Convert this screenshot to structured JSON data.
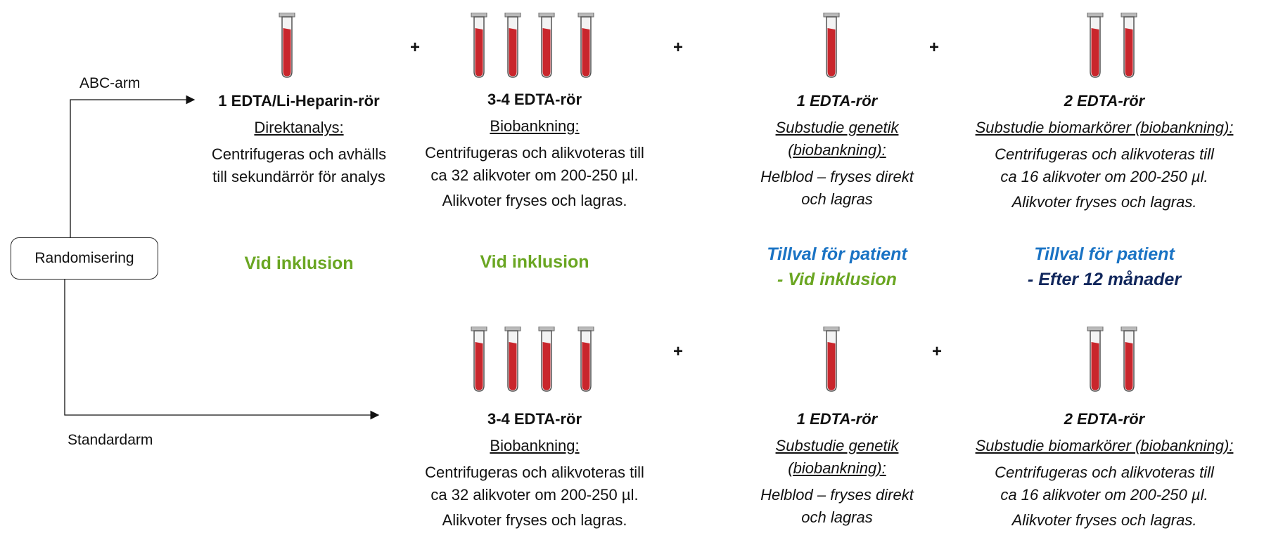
{
  "randomization": {
    "label": "Randomisering"
  },
  "arms": {
    "abc": {
      "label": "ABC-arm"
    },
    "standard": {
      "label": "Standardarm"
    }
  },
  "plus_symbol": "+",
  "colors": {
    "green": "#6aa622",
    "blue": "#1a73c4",
    "navy": "#11275c",
    "blood": "#c9262c"
  },
  "abc_arm": {
    "direct": {
      "tube_count": 1,
      "title": "1 EDTA/Li-Heparin-rör",
      "subtitle": "Direktanalys:",
      "desc": [
        "Centrifugeras och avhälls",
        "till sekundärrör för analys"
      ],
      "status": "Vid inklusion"
    },
    "biobank": {
      "tube_count": 4,
      "title": "3-4 EDTA-rör",
      "subtitle": "Biobankning:",
      "desc": [
        "Centrifugeras och alikvoteras till",
        "ca 32 alikvoter om 200-250 µl."
      ],
      "desc2": "Alikvoter fryses och lagras.",
      "status": "Vid inklusion"
    },
    "genetics": {
      "tube_count": 1,
      "title": "1 EDTA-rör",
      "subtitle": [
        "Substudie genetik",
        "(biobankning):"
      ],
      "desc": [
        "Helblod – fryses direkt",
        "och lagras"
      ],
      "status_line1": "Tillval för patient",
      "status_line2": "- Vid inklusion"
    },
    "biomarkers": {
      "tube_count": 2,
      "title": "2 EDTA-rör",
      "subtitle": "Substudie biomarkörer (biobankning):",
      "desc": [
        "Centrifugeras och alikvoteras till",
        "ca 16 alikvoter om 200-250 µl."
      ],
      "desc2": "Alikvoter fryses och lagras.",
      "status_line1": "Tillval för patient",
      "status_line2": "- Efter 12 månader"
    }
  },
  "standard_arm": {
    "biobank": {
      "tube_count": 4,
      "title": "3-4 EDTA-rör",
      "subtitle": "Biobankning:",
      "desc": [
        "Centrifugeras och alikvoteras till",
        "ca 32 alikvoter om 200-250 µl."
      ],
      "desc2": "Alikvoter fryses och lagras."
    },
    "genetics": {
      "tube_count": 1,
      "title": "1 EDTA-rör",
      "subtitle": [
        "Substudie genetik",
        "(biobankning):"
      ],
      "desc": [
        "Helblod – fryses direkt",
        "och lagras"
      ]
    },
    "biomarkers": {
      "tube_count": 2,
      "title": "2 EDTA-rör",
      "subtitle": "Substudie biomarkörer (biobankning):",
      "desc": [
        "Centrifugeras och alikvoteras till",
        "ca 16 alikvoter om 200-250 µl."
      ],
      "desc2": "Alikvoter fryses och lagras."
    }
  }
}
